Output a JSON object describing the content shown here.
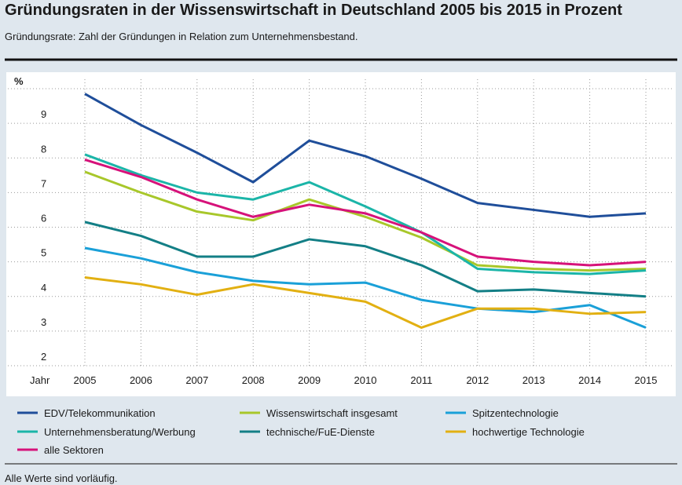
{
  "chart_data": {
    "type": "line",
    "title": "Gründungsraten in der Wissenswirtschaft in Deutschland 2005 bis 2015 in Prozent",
    "subtitle": "Gründungsrate: Zahl der Gründungen in Relation zum Unternehmensbestand.",
    "y_label": "%",
    "x_label": "Jahr",
    "note": "Alle Werte sind vorläufig.",
    "categories": [
      "2005",
      "2006",
      "2007",
      "2008",
      "2009",
      "2010",
      "2011",
      "2012",
      "2013",
      "2014",
      "2015"
    ],
    "ylim": [
      2,
      10
    ],
    "yticks": [
      2,
      3,
      4,
      5,
      6,
      7,
      8,
      9
    ],
    "grid": true,
    "series": [
      {
        "name": "EDV/Telekommunikation",
        "color": "#1f4e9a",
        "values": [
          9.85,
          8.95,
          8.15,
          7.3,
          8.5,
          8.05,
          7.4,
          6.7,
          6.5,
          6.3,
          6.4
        ]
      },
      {
        "name": "Wissenswirtschaft insgesamt",
        "color": "#a8c72a",
        "values": [
          7.6,
          7.0,
          6.45,
          6.2,
          6.8,
          6.3,
          5.7,
          4.9,
          4.8,
          4.75,
          4.8
        ]
      },
      {
        "name": "Spitzentechnologie",
        "color": "#1aa0d8",
        "values": [
          5.4,
          5.1,
          4.7,
          4.45,
          4.35,
          4.4,
          3.9,
          3.65,
          3.55,
          3.75,
          3.1
        ]
      },
      {
        "name": "Unternehmensberatung/Werbung",
        "color": "#1bb5a8",
        "values": [
          8.1,
          7.5,
          7.0,
          6.8,
          7.3,
          6.6,
          5.85,
          4.8,
          4.7,
          4.65,
          4.75
        ]
      },
      {
        "name": "technische/FuE-Dienste",
        "color": "#137f86",
        "values": [
          6.15,
          5.75,
          5.15,
          5.15,
          5.65,
          5.45,
          4.9,
          4.15,
          4.2,
          4.1,
          4.0
        ]
      },
      {
        "name": "hochwertige Technologie",
        "color": "#e2b012",
        "values": [
          4.55,
          4.35,
          4.05,
          4.35,
          4.1,
          3.85,
          3.1,
          3.65,
          3.65,
          3.5,
          3.55
        ]
      },
      {
        "name": "alle Sektoren",
        "color": "#d6127a",
        "values": [
          7.95,
          7.45,
          6.8,
          6.3,
          6.65,
          6.4,
          5.85,
          5.15,
          5.0,
          4.9,
          5.0
        ]
      }
    ]
  }
}
